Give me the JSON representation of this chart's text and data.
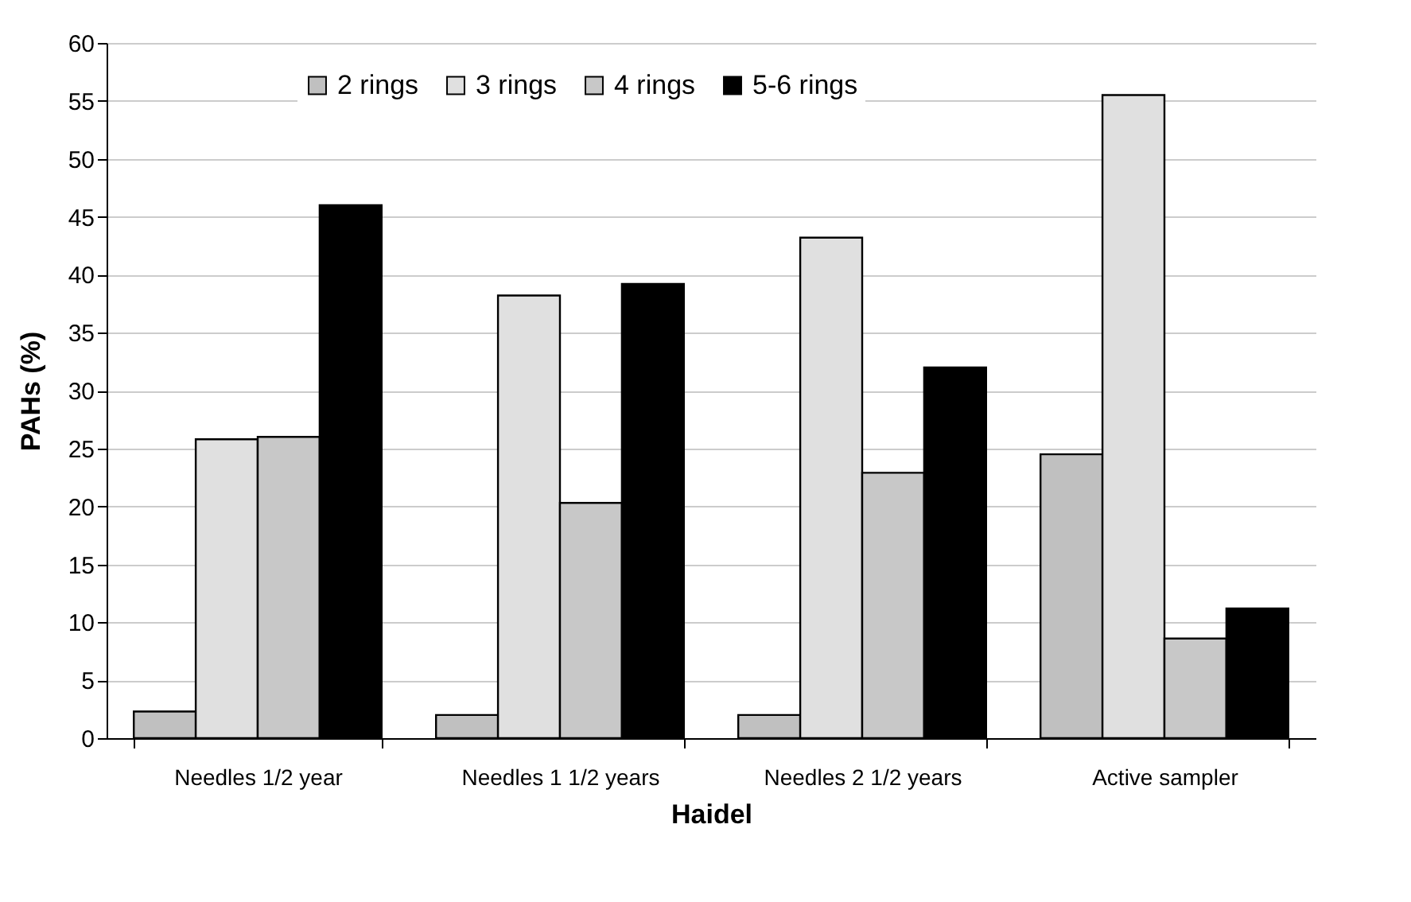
{
  "chart_data": {
    "type": "bar",
    "xlabel": "Haidel",
    "ylabel": "PAHs (%)",
    "categories": [
      "Needles 1/2 year",
      "Needles 1 1/2 years",
      "Needles 2 1/2 years",
      "Active sampler"
    ],
    "series": [
      {
        "name": "2 rings",
        "color": "#c0c0c0",
        "values": [
          2.3,
          2.0,
          2.0,
          24.5
        ]
      },
      {
        "name": "3 rings",
        "color": "#e0e0e0",
        "values": [
          25.8,
          38.2,
          43.2,
          55.5
        ]
      },
      {
        "name": "4 rings",
        "color": "#c8c8c8",
        "values": [
          26.0,
          20.3,
          22.9,
          8.6
        ]
      },
      {
        "name": "5-6 rings",
        "color": "#000000",
        "values": [
          46.0,
          39.2,
          32.0,
          11.2
        ]
      }
    ],
    "ylim": [
      0,
      60
    ],
    "yticks": [
      0,
      5,
      10,
      15,
      20,
      25,
      30,
      35,
      40,
      45,
      50,
      55,
      60
    ],
    "grid": "y",
    "legend": "top"
  }
}
